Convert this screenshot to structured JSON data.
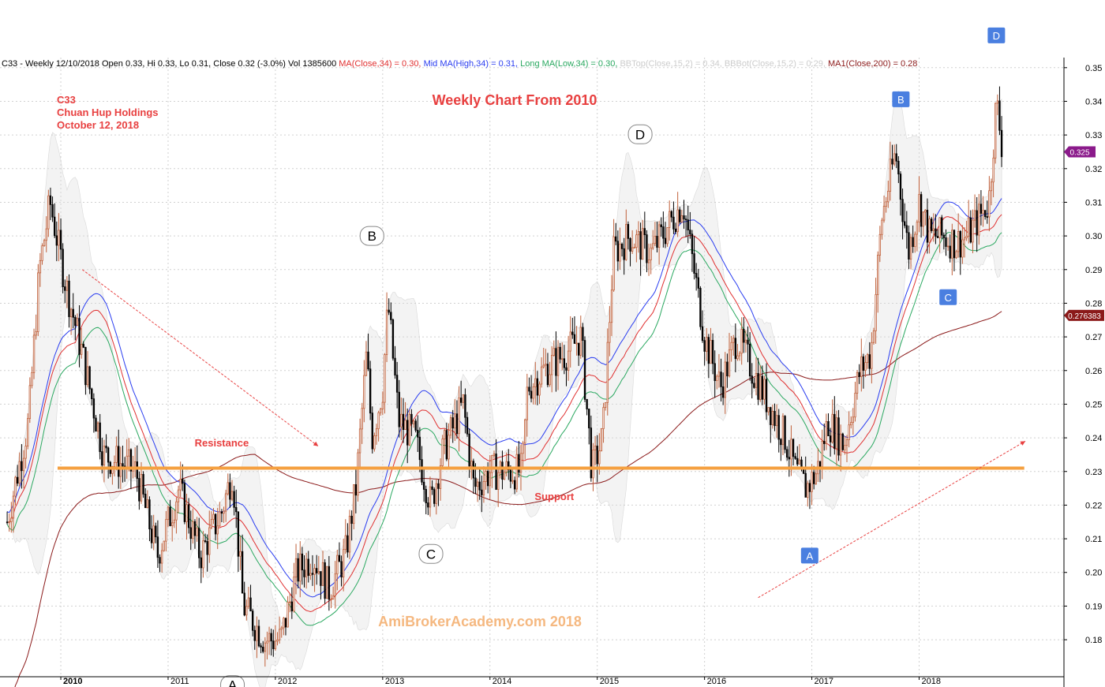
{
  "header": {
    "symbol_info": "C33 - Weekly 12/10/2018 Open 0.33, Hi 0.33, Lo 0.31, Close 0.32 (-3.0%) Vol 1385600 ",
    "ma_close": "MA(Close,34) = 0.30, ",
    "mid_ma": "Mid MA(High,34) = 0.31, ",
    "long_ma": "Long MA(Low,34) = 0.30, ",
    "bbtop": "BBTop(Close,15,2) = 0.34, ",
    "bbbot": "BBBot(Close,15,2) = 0.29, ",
    "ma1": "MA1(Close,200) = 0.28"
  },
  "colors": {
    "ma_close": "#e03030",
    "mid_ma": "#2a3df0",
    "long_ma": "#2aa860",
    "ma200": "#8b1a1a",
    "bb": "#bbbbbb",
    "up_candle": "#c0603a",
    "down_candle": "#000000",
    "grid": "#d0d0d0",
    "annotation_red": "#e84040",
    "level_line": "#f5a040",
    "box_label_bg": "#4a7fe0",
    "current_price_bg": "#8b1a8b",
    "ma200_tag_bg": "#8b1a1a"
  },
  "chart_data": {
    "type": "candlestick",
    "title": "Weekly Chart From 2010",
    "stock_label": [
      "C33",
      "Chuan Hup Holdings",
      "October 12, 2018"
    ],
    "watermark": "AmiBrokerAcademy.com  2018",
    "x_ticks": [
      "2010",
      "2011",
      "2012",
      "2013",
      "2014",
      "2015",
      "2016",
      "2017",
      "2018"
    ],
    "y_ticks": [
      "0.35",
      "0.34",
      "0.33",
      "0.32",
      "0.31",
      "0.30",
      "0.29",
      "0.28",
      "0.27",
      "0.26",
      "0.25",
      "0.24",
      "0.23",
      "0.22",
      "0.21",
      "0.20",
      "0.19",
      "0.18"
    ],
    "ylim": [
      0.169,
      0.353
    ],
    "xlim": [
      2009.47,
      2019.35
    ],
    "current_price": "0.325",
    "ma200_value": "0.276383",
    "level_line": {
      "value": 0.231,
      "x_start": 2009.97,
      "x_end": 2018.98
    },
    "text_annotations": [
      {
        "text": "Resistance",
        "x": 2011.5,
        "y": 0.2375
      },
      {
        "text": "Support",
        "x": 2014.6,
        "y": 0.2215
      }
    ],
    "circle_labels": [
      {
        "text": "A",
        "x": 2011.6,
        "y": 0.1665
      },
      {
        "text": "B",
        "x": 2012.9,
        "y": 0.3
      },
      {
        "text": "C",
        "x": 2013.45,
        "y": 0.2055
      },
      {
        "text": "D",
        "x": 2015.4,
        "y": 0.3302
      }
    ],
    "box_labels": [
      {
        "text": "A",
        "x": 2016.98,
        "y": 0.205
      },
      {
        "text": "B",
        "x": 2017.83,
        "y": 0.3406
      },
      {
        "text": "C",
        "x": 2018.27,
        "y": 0.2818
      },
      {
        "text": "D",
        "x": 2018.72,
        "y": 0.3596
      }
    ],
    "trend_arrows": [
      {
        "from": [
          2010.2,
          0.29
        ],
        "to": [
          2012.4,
          0.2375
        ]
      },
      {
        "from": [
          2016.5,
          0.1925
        ],
        "to": [
          2018.99,
          0.239
        ]
      }
    ],
    "ohlc": {
      "note": "weekly prices estimated from chart",
      "anchors": [
        [
          2009.5,
          0.215
        ],
        [
          2009.7,
          0.245
        ],
        [
          2009.8,
          0.29
        ],
        [
          2009.9,
          0.31
        ],
        [
          2010.05,
          0.285
        ],
        [
          2010.2,
          0.265
        ],
        [
          2010.4,
          0.235
        ],
        [
          2010.7,
          0.23
        ],
        [
          2010.9,
          0.205
        ],
        [
          2011.1,
          0.225
        ],
        [
          2011.3,
          0.205
        ],
        [
          2011.5,
          0.218
        ],
        [
          2011.6,
          0.23
        ],
        [
          2011.7,
          0.19
        ],
        [
          2011.9,
          0.18
        ],
        [
          2012.05,
          0.18
        ],
        [
          2012.2,
          0.2
        ],
        [
          2012.35,
          0.205
        ],
        [
          2012.5,
          0.195
        ],
        [
          2012.65,
          0.205
        ],
        [
          2012.75,
          0.225
        ],
        [
          2012.85,
          0.265
        ],
        [
          2012.9,
          0.24
        ],
        [
          2013.0,
          0.255
        ],
        [
          2013.05,
          0.28
        ],
        [
          2013.15,
          0.245
        ],
        [
          2013.3,
          0.24
        ],
        [
          2013.45,
          0.22
        ],
        [
          2013.55,
          0.235
        ],
        [
          2013.75,
          0.25
        ],
        [
          2013.85,
          0.225
        ],
        [
          2014.0,
          0.23
        ],
        [
          2014.3,
          0.23
        ],
        [
          2014.35,
          0.255
        ],
        [
          2014.5,
          0.26
        ],
        [
          2014.7,
          0.265
        ],
        [
          2014.85,
          0.27
        ],
        [
          2014.95,
          0.23
        ],
        [
          2015.05,
          0.24
        ],
        [
          2015.15,
          0.295
        ],
        [
          2015.3,
          0.3
        ],
        [
          2015.5,
          0.295
        ],
        [
          2015.7,
          0.305
        ],
        [
          2015.8,
          0.31
        ],
        [
          2015.9,
          0.29
        ],
        [
          2016.0,
          0.27
        ],
        [
          2016.15,
          0.255
        ],
        [
          2016.3,
          0.27
        ],
        [
          2016.45,
          0.26
        ],
        [
          2016.6,
          0.25
        ],
        [
          2016.75,
          0.24
        ],
        [
          2016.85,
          0.23
        ],
        [
          2016.95,
          0.225
        ],
        [
          2017.05,
          0.23
        ],
        [
          2017.15,
          0.245
        ],
        [
          2017.3,
          0.238
        ],
        [
          2017.45,
          0.26
        ],
        [
          2017.55,
          0.265
        ],
        [
          2017.65,
          0.305
        ],
        [
          2017.78,
          0.325
        ],
        [
          2017.9,
          0.295
        ],
        [
          2018.0,
          0.31
        ],
        [
          2018.1,
          0.3
        ],
        [
          2018.2,
          0.3
        ],
        [
          2018.35,
          0.298
        ],
        [
          2018.45,
          0.3
        ],
        [
          2018.55,
          0.305
        ],
        [
          2018.65,
          0.31
        ],
        [
          2018.72,
          0.34
        ],
        [
          2018.78,
          0.325
        ]
      ],
      "volatility": 0.0055
    }
  }
}
